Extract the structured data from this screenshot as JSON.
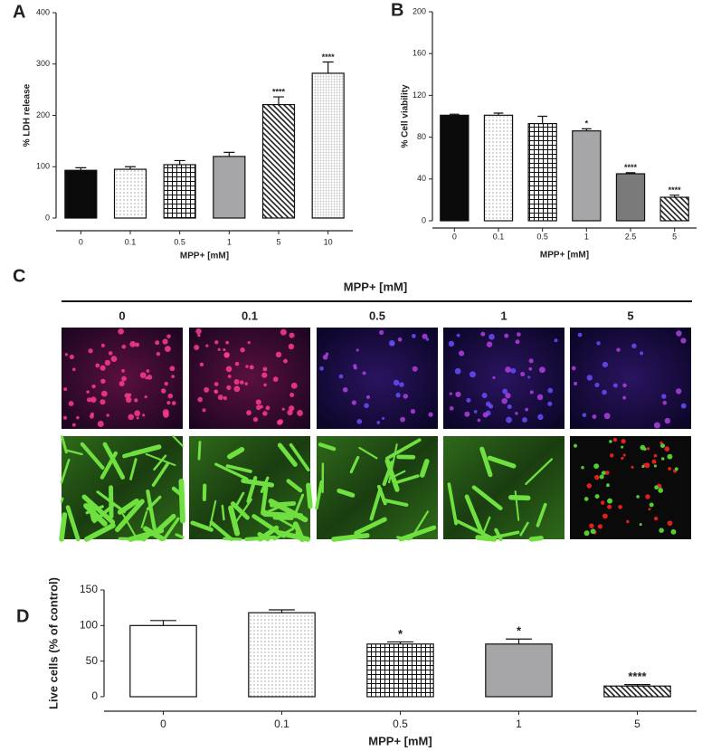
{
  "chart_data": [
    {
      "type": "bar",
      "panel": "A",
      "categories": [
        "0",
        "0.1",
        "0.5",
        "1",
        "5",
        "10"
      ],
      "values": [
        93,
        95,
        104,
        120,
        221,
        282
      ],
      "errors": [
        5,
        5,
        8,
        8,
        15,
        22
      ],
      "annotations": [
        null,
        null,
        null,
        null,
        "****",
        "****"
      ],
      "bar_styles": [
        "solid-black",
        "dots",
        "grid",
        "solid-gray",
        "diagonal",
        "fine-grid"
      ],
      "x_label": "MPP+ [mM]",
      "y_label": "% LDH release",
      "ylim": [
        0,
        400
      ],
      "yticks": [
        0,
        100,
        200,
        300,
        400
      ]
    },
    {
      "type": "bar",
      "panel": "B",
      "categories": [
        "0",
        "0.1",
        "0.5",
        "1",
        "2.5",
        "5"
      ],
      "values": [
        101,
        101,
        93,
        86,
        45,
        22.5
      ],
      "errors": [
        1,
        2,
        7,
        2,
        1,
        2
      ],
      "annotations": [
        null,
        null,
        null,
        "*",
        "****",
        "****"
      ],
      "bar_styles": [
        "solid-black",
        "dots",
        "grid",
        "solid-gray",
        "solid-darkgray",
        "diagonal"
      ],
      "x_label": "MPP+ [mM]",
      "y_label": "% Cell viability",
      "ylim": [
        0,
        200
      ],
      "yticks": [
        0,
        40,
        80,
        120,
        160,
        200
      ]
    },
    {
      "type": "bar",
      "panel": "D",
      "categories": [
        "0",
        "0.1",
        "0.5",
        "1",
        "5"
      ],
      "values": [
        100,
        118,
        74,
        74,
        15
      ],
      "errors": [
        7,
        4,
        3,
        7,
        2
      ],
      "annotations": [
        null,
        null,
        "*",
        "*",
        "****"
      ],
      "bar_styles": [
        "white",
        "dots",
        "grid",
        "solid-gray",
        "diagonal"
      ],
      "x_label": "MPP+   [mM]",
      "y_label": "Live cells (% of control)",
      "ylim": [
        0,
        150
      ],
      "yticks": [
        0,
        50,
        100,
        150
      ]
    }
  ],
  "image_panel": {
    "panel": "C",
    "title": "MPP+ [mM]",
    "columns": [
      "0",
      "0.1",
      "0.5",
      "1",
      "5"
    ]
  }
}
